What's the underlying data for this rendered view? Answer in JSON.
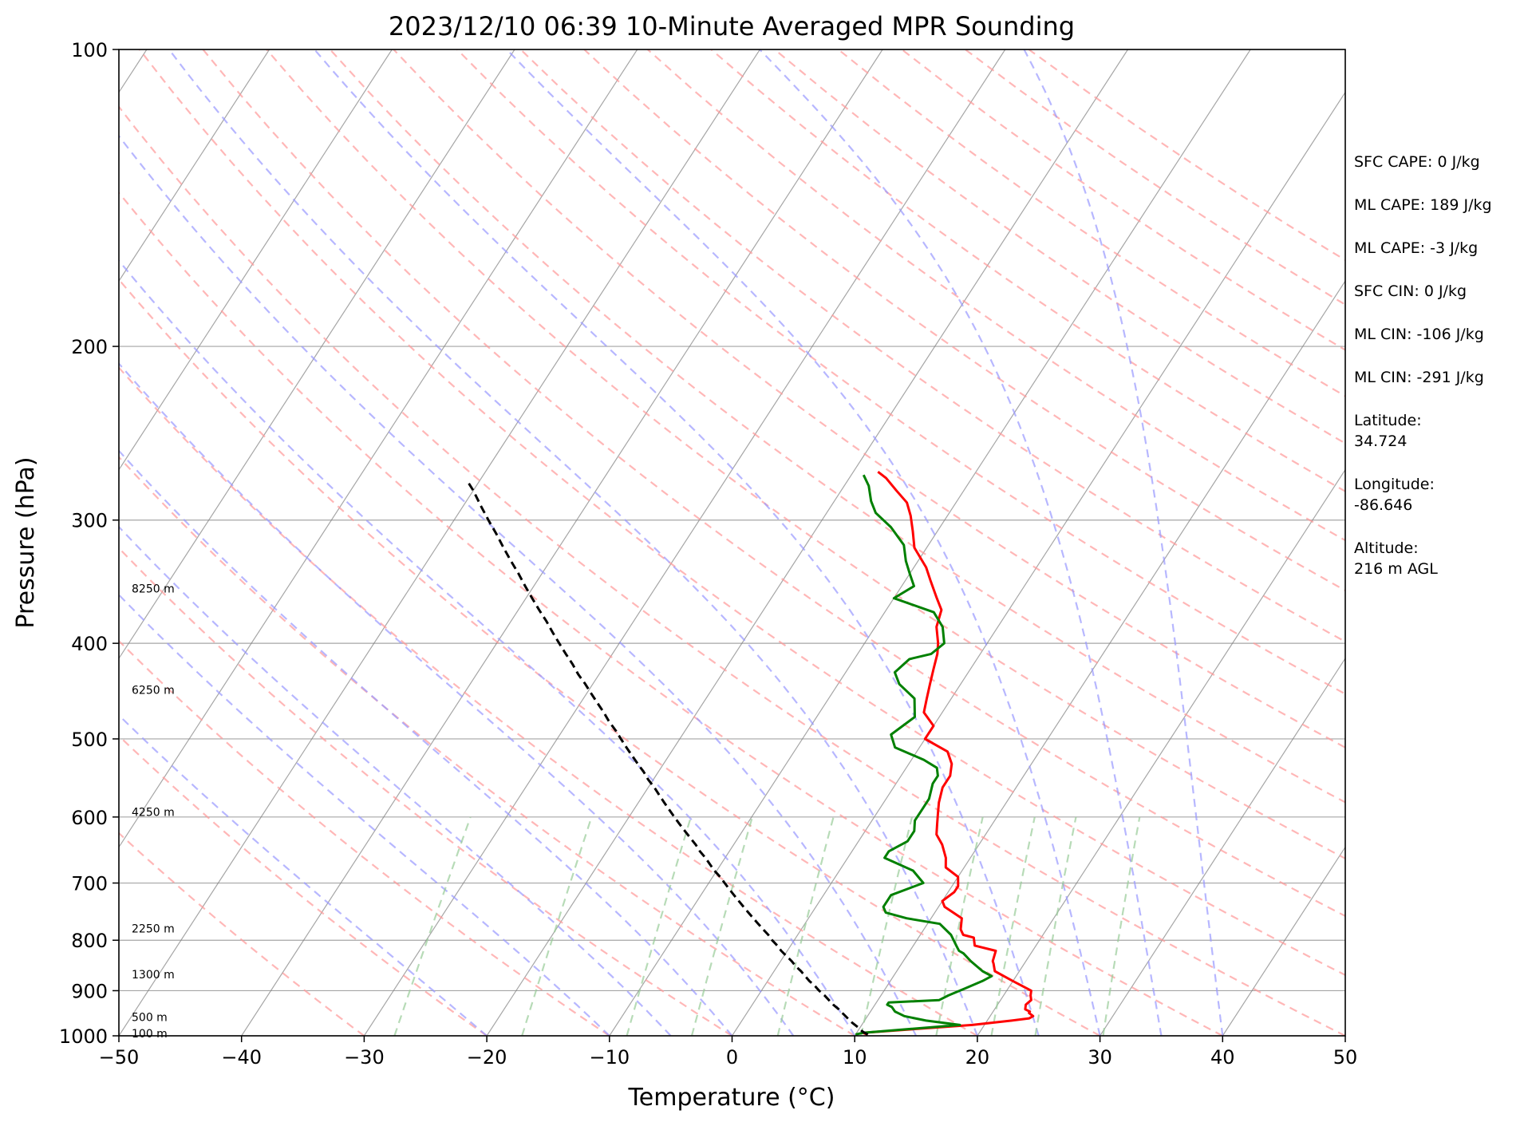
{
  "chart_data": {
    "type": "line",
    "subtype": "skew-t log-p",
    "title": "2023/12/10 06:39 10-Minute Averaged MPR Sounding",
    "xlabel": "Temperature (°C)",
    "ylabel": "Pressure (hPa)",
    "xlim": [
      -50,
      50
    ],
    "ylim": [
      1000,
      100
    ],
    "yscale": "log",
    "grid": true,
    "x_ticks": [
      -50,
      -40,
      -30,
      -20,
      -10,
      0,
      10,
      20,
      30,
      40,
      50
    ],
    "x_tick_labels": [
      "−50",
      "−40",
      "−30",
      "−20",
      "−10",
      "0",
      "10",
      "20",
      "30",
      "40",
      "50"
    ],
    "y_ticks": [
      100,
      200,
      300,
      400,
      500,
      600,
      700,
      800,
      900,
      1000
    ],
    "y_tick_labels": [
      "100",
      "200",
      "300",
      "400",
      "500",
      "600",
      "700",
      "800",
      "900",
      "1000"
    ],
    "series": [
      {
        "kind": "temperature",
        "color": "#ff0000",
        "points": [
          [
            997,
            11.0
          ],
          [
            993,
            10.5
          ],
          [
            975,
            19
          ],
          [
            965,
            22
          ],
          [
            960,
            23.3
          ],
          [
            955,
            23.5
          ],
          [
            948,
            23
          ],
          [
            945,
            23
          ],
          [
            940,
            22.5
          ],
          [
            930,
            22.3
          ],
          [
            920,
            22.5
          ],
          [
            910,
            22.2
          ],
          [
            900,
            22
          ],
          [
            880,
            20
          ],
          [
            860,
            18
          ],
          [
            845,
            17.5
          ],
          [
            840,
            17.3
          ],
          [
            820,
            17
          ],
          [
            810,
            15
          ],
          [
            795,
            14.5
          ],
          [
            790,
            13.5
          ],
          [
            780,
            13
          ],
          [
            760,
            12.5
          ],
          [
            740,
            10.5
          ],
          [
            730,
            10
          ],
          [
            715,
            10.5
          ],
          [
            705,
            10.5
          ],
          [
            690,
            10
          ],
          [
            675,
            8.5
          ],
          [
            660,
            8
          ],
          [
            640,
            7
          ],
          [
            625,
            6
          ],
          [
            610,
            5.5
          ],
          [
            595,
            5
          ],
          [
            580,
            4.5
          ],
          [
            560,
            4
          ],
          [
            545,
            4
          ],
          [
            530,
            3.5
          ],
          [
            515,
            2.5
          ],
          [
            500,
            0
          ],
          [
            485,
            0
          ],
          [
            470,
            -1.5
          ],
          [
            455,
            -2
          ],
          [
            440,
            -2.5
          ],
          [
            425,
            -3
          ],
          [
            410,
            -3.5
          ],
          [
            400,
            -4
          ],
          [
            385,
            -5
          ],
          [
            370,
            -5.5
          ],
          [
            360,
            -6.5
          ],
          [
            345,
            -8
          ],
          [
            335,
            -9
          ],
          [
            320,
            -11
          ],
          [
            308,
            -12
          ],
          [
            297,
            -13
          ],
          [
            288,
            -14
          ],
          [
            280,
            -15.5
          ],
          [
            272,
            -17
          ],
          [
            268,
            -18
          ]
        ]
      },
      {
        "kind": "dewpoint",
        "color": "#008000",
        "points": [
          [
            997,
            10
          ],
          [
            993,
            10.5
          ],
          [
            975,
            18
          ],
          [
            965,
            15
          ],
          [
            955,
            13
          ],
          [
            945,
            12
          ],
          [
            935,
            11.5
          ],
          [
            930,
            11
          ],
          [
            925,
            11
          ],
          [
            920,
            15
          ],
          [
            910,
            15.5
          ],
          [
            895,
            16.5
          ],
          [
            880,
            17.5
          ],
          [
            870,
            18
          ],
          [
            860,
            17
          ],
          [
            840,
            15.5
          ],
          [
            825,
            14.5
          ],
          [
            820,
            14
          ],
          [
            810,
            13.5
          ],
          [
            790,
            12.5
          ],
          [
            770,
            11
          ],
          [
            760,
            8
          ],
          [
            750,
            6
          ],
          [
            740,
            5.5
          ],
          [
            720,
            5.5
          ],
          [
            700,
            7.5
          ],
          [
            680,
            6
          ],
          [
            660,
            3
          ],
          [
            650,
            3
          ],
          [
            635,
            4
          ],
          [
            620,
            4
          ],
          [
            605,
            3.5
          ],
          [
            590,
            3.5
          ],
          [
            575,
            3.5
          ],
          [
            555,
            3
          ],
          [
            545,
            3
          ],
          [
            535,
            2.5
          ],
          [
            525,
            1
          ],
          [
            510,
            -2
          ],
          [
            495,
            -3
          ],
          [
            475,
            -2
          ],
          [
            455,
            -3
          ],
          [
            440,
            -5
          ],
          [
            428,
            -6
          ],
          [
            415,
            -5.5
          ],
          [
            410,
            -4
          ],
          [
            400,
            -3.5
          ],
          [
            385,
            -4.5
          ],
          [
            372,
            -6
          ],
          [
            360,
            -10
          ],
          [
            350,
            -9
          ],
          [
            340,
            -10
          ],
          [
            330,
            -11
          ],
          [
            318,
            -12
          ],
          [
            305,
            -14
          ],
          [
            295,
            -16
          ],
          [
            287,
            -17
          ],
          [
            277,
            -18
          ],
          [
            270,
            -19
          ]
        ]
      },
      {
        "kind": "parcel",
        "color": "#000000",
        "dashed": true,
        "points": [
          [
            997,
            11.0
          ],
          [
            990,
            10.4
          ],
          [
            980,
            9.8
          ],
          [
            970,
            9.1
          ],
          [
            960,
            8.5
          ],
          [
            950,
            7.9
          ],
          [
            940,
            7.3
          ],
          [
            930,
            6.6
          ],
          [
            920,
            6.0
          ],
          [
            910,
            5.4
          ],
          [
            900,
            4.7
          ],
          [
            890,
            4.1
          ],
          [
            880,
            3.4
          ],
          [
            870,
            2.8
          ],
          [
            860,
            2.2
          ],
          [
            850,
            1.5
          ],
          [
            840,
            0.9
          ],
          [
            830,
            0.2
          ],
          [
            820,
            -0.5
          ],
          [
            810,
            -1.1
          ],
          [
            800,
            -1.8
          ],
          [
            790,
            -2.4
          ],
          [
            780,
            -3.1
          ],
          [
            770,
            -3.8
          ],
          [
            760,
            -4.5
          ],
          [
            750,
            -5.2
          ],
          [
            740,
            -5.9
          ],
          [
            730,
            -6.6
          ],
          [
            720,
            -7.3
          ],
          [
            710,
            -8.0
          ],
          [
            700,
            -8.7
          ],
          [
            690,
            -9.4
          ],
          [
            680,
            -10.2
          ],
          [
            670,
            -10.9
          ],
          [
            660,
            -11.6
          ],
          [
            650,
            -12.4
          ],
          [
            640,
            -13.1
          ],
          [
            630,
            -13.9
          ],
          [
            620,
            -14.7
          ],
          [
            610,
            -15.5
          ],
          [
            600,
            -16.3
          ],
          [
            590,
            -17.1
          ],
          [
            580,
            -17.9
          ],
          [
            570,
            -18.7
          ],
          [
            560,
            -19.5
          ],
          [
            550,
            -20.4
          ],
          [
            540,
            -21.2
          ],
          [
            530,
            -22.1
          ],
          [
            520,
            -23.0
          ],
          [
            510,
            -23.9
          ],
          [
            500,
            -24.8
          ],
          [
            490,
            -25.7
          ],
          [
            480,
            -26.7
          ],
          [
            470,
            -27.6
          ],
          [
            460,
            -28.6
          ],
          [
            450,
            -29.6
          ],
          [
            440,
            -30.6
          ],
          [
            430,
            -31.7
          ],
          [
            420,
            -32.7
          ],
          [
            410,
            -33.8
          ],
          [
            400,
            -34.9
          ],
          [
            390,
            -36.0
          ],
          [
            380,
            -37.1
          ],
          [
            370,
            -38.3
          ],
          [
            360,
            -39.5
          ],
          [
            350,
            -40.7
          ],
          [
            340,
            -41.9
          ],
          [
            330,
            -43.2
          ],
          [
            320,
            -44.5
          ],
          [
            310,
            -45.8
          ],
          [
            300,
            -47.2
          ],
          [
            290,
            -48.6
          ],
          [
            280,
            -50.0
          ],
          [
            275,
            -50.8
          ]
        ]
      }
    ],
    "height_labels": [
      {
        "pressure": 352,
        "text": "8250 m"
      },
      {
        "pressure": 446,
        "text": "6250 m"
      },
      {
        "pressure": 593,
        "text": "4250 m"
      },
      {
        "pressure": 778,
        "text": "2250 m"
      },
      {
        "pressure": 866,
        "text": "1300 m"
      },
      {
        "pressure": 957,
        "text": "500 m"
      },
      {
        "pressure": 994,
        "text": "100 m"
      }
    ],
    "annotations": [
      "SFC CAPE: 0 J/kg",
      "ML CAPE: 189 J/kg",
      "ML CAPE: -3 J/kg",
      "SFC CIN: 0 J/kg",
      "ML CIN: -106 J/kg",
      "ML CIN: -291 J/kg",
      [
        "Latitude:",
        "34.724"
      ],
      [
        "Longitude:",
        "-86.646"
      ],
      [
        "Altitude:",
        "216 m AGL"
      ]
    ],
    "reference_lines": {
      "isotherms_color": "#808080",
      "dry_adiabats_color": "#ff9999",
      "moist_adiabats_color": "#9999ff",
      "mixing_ratio_color": "#99cc99"
    }
  }
}
